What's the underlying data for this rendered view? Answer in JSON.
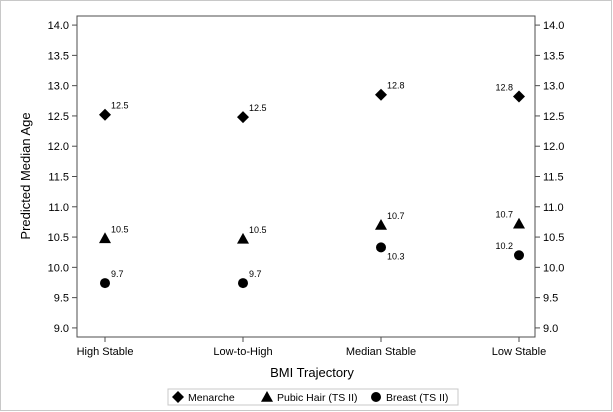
{
  "chart_data": {
    "type": "scatter",
    "title": "",
    "xlabel": "BMI Trajectory",
    "ylabel": "Predicted Median Age",
    "categories": [
      "High Stable",
      "Low-to-High",
      "Median Stable",
      "Low Stable"
    ],
    "ylim": [
      8.85,
      14.15
    ],
    "yticks": [
      "9.0",
      "9.5",
      "10.0",
      "10.5",
      "11.0",
      "11.5",
      "12.0",
      "12.5",
      "13.0",
      "13.5",
      "14.0"
    ],
    "y2ticks": [
      "9.0",
      "9.5",
      "10.0",
      "10.5",
      "11.0",
      "11.5",
      "12.0",
      "12.5",
      "13.0",
      "13.5",
      "14.0"
    ],
    "grid": false,
    "legend_position": "bottom",
    "series": [
      {
        "name": "Menarche",
        "marker": "diamond",
        "values": [
          12.52,
          12.48,
          12.85,
          12.82
        ],
        "labels": [
          "12.5",
          "12.5",
          "12.8",
          "12.8"
        ]
      },
      {
        "name": "Pubic Hair (TS II)",
        "marker": "triangle",
        "values": [
          10.48,
          10.47,
          10.7,
          10.72
        ],
        "labels": [
          "10.5",
          "10.5",
          "10.7",
          "10.7"
        ]
      },
      {
        "name": "Breast (TS II)",
        "marker": "circle",
        "values": [
          9.74,
          9.74,
          10.33,
          10.2
        ],
        "labels": [
          "9.7",
          "9.7",
          "10.3",
          "10.2"
        ]
      }
    ],
    "colors": {
      "marker": "#000000",
      "frame": "#4d4d4d",
      "outer_border": "#c8c8c8"
    }
  }
}
